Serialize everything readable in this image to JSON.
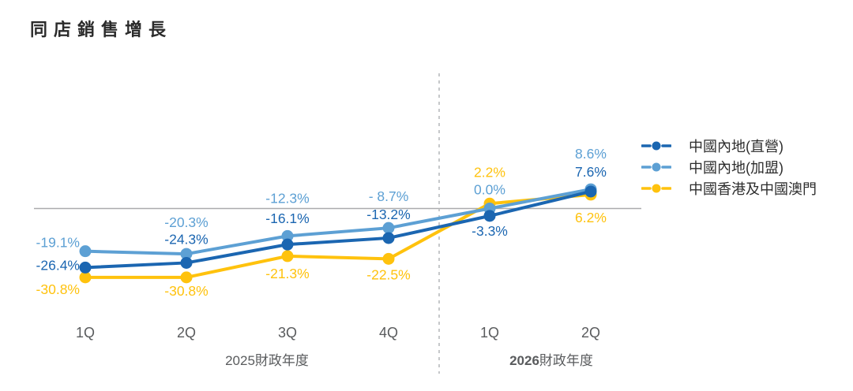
{
  "page": {
    "title": "同店銷售增長"
  },
  "chart_data": {
    "type": "line",
    "title": "同店銷售增長",
    "categories": [
      "1Q",
      "2Q",
      "3Q",
      "4Q",
      "1Q",
      "2Q"
    ],
    "x_groups": [
      {
        "year": "2025",
        "suffix": "財政年度",
        "bold_year": false
      },
      {
        "year": "2026",
        "suffix": "財政年度",
        "bold_year": true
      }
    ],
    "series": [
      {
        "name": "中國內地(直營)",
        "color": "#1b66b1",
        "values": [
          -26.4,
          -24.3,
          -16.1,
          -13.2,
          -3.3,
          7.6
        ],
        "labels": [
          "-26.4%",
          "-24.3%",
          "-16.1%",
          "-13.2%",
          "-3.3%",
          "7.6%"
        ]
      },
      {
        "name": "中國內地(加盟)",
        "color": "#5da0d4",
        "values": [
          -19.1,
          -20.3,
          -12.3,
          -8.7,
          0.0,
          8.6
        ],
        "labels": [
          "-19.1%",
          "-20.3%",
          "-12.3%",
          "- 8.7%",
          "0.0%",
          "8.6%"
        ]
      },
      {
        "name": "中國香港及中國澳門",
        "color": "#ffc20d",
        "values": [
          -30.8,
          -30.8,
          -21.3,
          -22.5,
          2.2,
          6.2
        ],
        "labels": [
          "-30.8%",
          "-30.8%",
          "-21.3%",
          "-22.5%",
          "2.2%",
          "6.2%"
        ]
      }
    ],
    "baseline": 0,
    "ylim": [
      -35,
      12
    ],
    "grid": "zero-line-only",
    "divider_after_index": 3,
    "legend_position": "right",
    "colors": {
      "zero_line": "#ababad",
      "divider": "#b3b5b8",
      "axis_text": "#595b5d",
      "legend_text": "#2d2d2d"
    }
  }
}
